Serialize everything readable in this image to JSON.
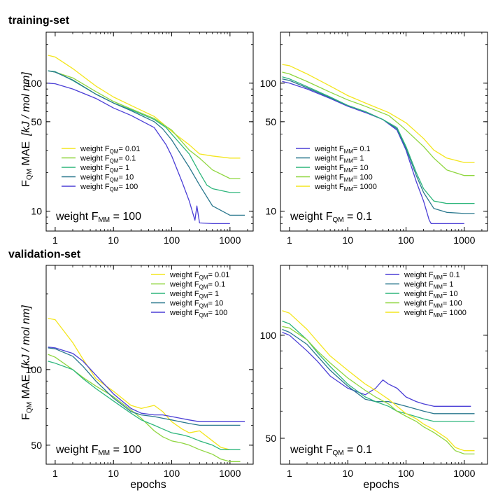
{
  "titles": {
    "training": "training-set",
    "validation": "validation-set"
  },
  "ylabel": {
    "main": "F",
    "sub": "QM",
    "tail": " MAE",
    "unit": "[kJ / mol nm]"
  },
  "xlabel": "epochs",
  "colors": {
    "yellow": "#f4e61e",
    "lightgreen": "#8fd63f",
    "green": "#2eb67c",
    "teal": "#2a788e",
    "purple": "#4b3fd6"
  },
  "chart_data": [
    {
      "type": "line",
      "id": "training-fmm100",
      "xscale": "log",
      "yscale": "log",
      "xlim": [
        0.7,
        2500
      ],
      "ylim": [
        7,
        250
      ],
      "xticks": [
        1,
        10,
        100,
        1000
      ],
      "xtick_labels": [
        "1",
        "10",
        "100",
        "1000"
      ],
      "yticks": [
        10,
        50,
        100
      ],
      "ytick_labels": [
        "10",
        "50",
        "100"
      ],
      "legend_position": "lower-left",
      "note": {
        "pre": "weight F",
        "sub": "MM",
        "post": " = 100"
      },
      "series": [
        {
          "name_pre": "weight F",
          "name_sub": "QM",
          "name_post": "= 0.01",
          "color": "#f4e61e",
          "x": [
            0.75,
            1,
            2,
            5,
            10,
            20,
            50,
            80,
            100,
            200,
            300,
            500,
            1000,
            1500
          ],
          "y": [
            165,
            160,
            130,
            95,
            78,
            67,
            55,
            46,
            42,
            33,
            28,
            27,
            26,
            26
          ]
        },
        {
          "name_pre": "weight F",
          "name_sub": "QM",
          "name_post": "= 0.1",
          "color": "#8fd63f",
          "x": [
            0.75,
            1,
            2,
            5,
            10,
            20,
            50,
            80,
            100,
            200,
            300,
            500,
            1000,
            1500
          ],
          "y": [
            125,
            122,
            110,
            86,
            72,
            63,
            53,
            46,
            43,
            30,
            26,
            21,
            18,
            18
          ]
        },
        {
          "name_pre": "weight F",
          "name_sub": "QM",
          "name_post": "= 1",
          "color": "#2eb67c",
          "x": [
            0.75,
            1,
            2,
            5,
            10,
            20,
            50,
            80,
            100,
            200,
            300,
            400,
            500,
            1000,
            1500
          ],
          "y": [
            125,
            123,
            105,
            82,
            70,
            62,
            52,
            45,
            40,
            28,
            20,
            16,
            15,
            14,
            14
          ]
        },
        {
          "name_pre": "weight F",
          "name_sub": "QM",
          "name_post": "= 10",
          "color": "#2a788e",
          "x": [
            0.75,
            1,
            2,
            5,
            10,
            20,
            50,
            70,
            100,
            200,
            300,
            500,
            1000,
            1800
          ],
          "y": [
            125,
            122,
            106,
            82,
            70,
            61,
            50,
            44,
            36,
            22,
            16,
            11,
            9.3,
            9.3
          ]
        },
        {
          "name_pre": "weight F",
          "name_sub": "QM",
          "name_post": "= 100",
          "color": "#4b3fd6",
          "x": [
            0.75,
            1,
            2,
            5,
            10,
            20,
            50,
            80,
            100,
            150,
            200,
            250,
            270,
            300,
            500,
            1000
          ],
          "y": [
            100,
            99,
            90,
            76,
            64,
            56,
            45,
            33,
            27,
            17,
            12,
            8.5,
            11,
            8.1,
            8.0,
            8.0
          ]
        }
      ]
    },
    {
      "type": "line",
      "id": "training-fqm01",
      "xscale": "log",
      "yscale": "log",
      "xlim": [
        0.7,
        2500
      ],
      "ylim": [
        7,
        250
      ],
      "xticks": [
        1,
        10,
        100,
        1000
      ],
      "xtick_labels": [
        "1",
        "10",
        "100",
        "1000"
      ],
      "yticks": [
        10,
        50,
        100
      ],
      "ytick_labels": [
        "10",
        "50",
        "100"
      ],
      "legend_position": "lower-left",
      "note": {
        "pre": "weight F",
        "sub": "QM",
        "post": " = 0.1"
      },
      "series": [
        {
          "name_pre": "weight F",
          "name_sub": "MM",
          "name_post": "= 0.1",
          "color": "#4b3fd6",
          "x": [
            0.75,
            1,
            2,
            5,
            10,
            20,
            40,
            70,
            100,
            150,
            200,
            250,
            270,
            500,
            1000
          ],
          "y": [
            103,
            100,
            90,
            76,
            66,
            59,
            52,
            43,
            30,
            17,
            12,
            8.5,
            8,
            8,
            8
          ]
        },
        {
          "name_pre": "weight F",
          "name_sub": "MM",
          "name_post": "= 1",
          "color": "#2a788e",
          "x": [
            0.75,
            1,
            2,
            5,
            10,
            20,
            40,
            70,
            100,
            150,
            200,
            300,
            500,
            1000,
            1500
          ],
          "y": [
            108,
            105,
            92,
            77,
            67,
            60,
            52,
            44,
            31,
            19,
            14,
            10.5,
            9.8,
            9.6,
            9.6
          ]
        },
        {
          "name_pre": "weight F",
          "name_sub": "MM",
          "name_post": "= 10",
          "color": "#2eb67c",
          "x": [
            0.75,
            1,
            2,
            5,
            10,
            20,
            40,
            70,
            100,
            150,
            200,
            300,
            500,
            1000,
            1500
          ],
          "y": [
            112,
            108,
            94,
            78,
            67,
            60,
            52,
            45,
            32,
            20,
            15,
            12,
            11.5,
            11.5,
            11.5
          ]
        },
        {
          "name_pre": "weight F",
          "name_sub": "MM",
          "name_post": "= 100",
          "color": "#8fd63f",
          "x": [
            0.75,
            1,
            2,
            5,
            10,
            20,
            50,
            80,
            100,
            200,
            300,
            500,
            1000,
            1500
          ],
          "y": [
            122,
            118,
            103,
            85,
            74,
            66,
            56,
            47,
            43,
            32,
            26,
            21,
            19,
            19
          ]
        },
        {
          "name_pre": "weight F",
          "name_sub": "MM",
          "name_post": "= 1000",
          "color": "#f4e61e",
          "x": [
            0.75,
            1,
            2,
            5,
            10,
            20,
            50,
            80,
            100,
            200,
            300,
            500,
            1000,
            1500
          ],
          "y": [
            140,
            137,
            118,
            95,
            80,
            70,
            59,
            52,
            49,
            37,
            30,
            26,
            24,
            24
          ]
        }
      ]
    },
    {
      "type": "line",
      "id": "validation-fmm100",
      "xscale": "log",
      "yscale": "log",
      "xlim": [
        0.7,
        2500
      ],
      "ylim": [
        42,
        260
      ],
      "xticks": [
        1,
        10,
        100,
        1000
      ],
      "xtick_labels": [
        "1",
        "10",
        "100",
        "1000"
      ],
      "yticks": [
        50,
        100
      ],
      "ytick_labels": [
        "50",
        "100"
      ],
      "legend_position": "top-right",
      "note": {
        "pre": "weight F",
        "sub": "MM",
        "post": " = 100"
      },
      "series": [
        {
          "name_pre": "weight F",
          "name_sub": "QM",
          "name_post": "= 0.01",
          "color": "#f4e61e",
          "x": [
            0.75,
            1,
            2,
            3,
            5,
            10,
            20,
            30,
            50,
            70,
            100,
            150,
            200,
            300,
            500,
            700,
            1000
          ],
          "y": [
            160,
            158,
            128,
            110,
            92,
            82,
            72,
            70,
            72,
            68,
            62,
            58,
            56,
            57,
            52,
            49,
            48
          ]
        },
        {
          "name_pre": "weight F",
          "name_sub": "QM",
          "name_post": "= 0.1",
          "color": "#8fd63f",
          "x": [
            0.75,
            1,
            2,
            3,
            5,
            10,
            20,
            30,
            50,
            70,
            100,
            150,
            200,
            300,
            500,
            700,
            1000,
            1500
          ],
          "y": [
            115,
            112,
            100,
            93,
            86,
            78,
            69,
            64,
            57,
            54,
            52,
            51,
            50,
            48,
            46,
            44,
            43,
            43
          ]
        },
        {
          "name_pre": "weight F",
          "name_sub": "QM",
          "name_post": "= 1",
          "color": "#2eb67c",
          "x": [
            0.75,
            1,
            2,
            3,
            5,
            10,
            20,
            30,
            50,
            70,
            100,
            150,
            200,
            300,
            500,
            700,
            1000,
            1500
          ],
          "y": [
            108,
            106,
            100,
            92,
            84,
            75,
            67,
            63,
            60,
            58,
            56,
            55,
            54,
            52,
            50,
            48,
            48,
            48
          ]
        },
        {
          "name_pre": "weight F",
          "name_sub": "QM",
          "name_post": "= 10",
          "color": "#2a788e",
          "x": [
            0.75,
            1,
            2,
            3,
            5,
            10,
            20,
            30,
            50,
            70,
            100,
            200,
            300,
            500,
            1000,
            1500
          ],
          "y": [
            122,
            121,
            113,
            103,
            90,
            77,
            68,
            66,
            65,
            64,
            63,
            61,
            60,
            60,
            60,
            60
          ]
        },
        {
          "name_pre": "weight F",
          "name_sub": "QM",
          "name_post": "= 100",
          "color": "#4b3fd6",
          "x": [
            0.75,
            1,
            2,
            3,
            5,
            10,
            20,
            30,
            50,
            70,
            100,
            200,
            300,
            500,
            1000,
            1800
          ],
          "y": [
            123,
            122,
            116,
            108,
            95,
            80,
            70,
            67,
            66,
            66,
            65,
            63,
            62,
            62,
            62,
            62
          ]
        }
      ]
    },
    {
      "type": "line",
      "id": "validation-fqm01",
      "xscale": "log",
      "yscale": "log",
      "xlim": [
        0.7,
        2500
      ],
      "ylim": [
        42,
        160
      ],
      "xticks": [
        1,
        10,
        100,
        1000
      ],
      "xtick_labels": [
        "1",
        "10",
        "100",
        "1000"
      ],
      "yticks": [
        50,
        100
      ],
      "ytick_labels": [
        "50",
        "100"
      ],
      "legend_position": "top-right",
      "note": {
        "pre": "weight F",
        "sub": "QM",
        "post": " = 0.1"
      },
      "series": [
        {
          "name_pre": "weight F",
          "name_sub": "MM",
          "name_post": "= 0.1",
          "color": "#4b3fd6",
          "x": [
            0.75,
            1,
            2,
            3,
            5,
            10,
            20,
            30,
            40,
            50,
            70,
            100,
            150,
            200,
            300,
            500,
            1000,
            1300
          ],
          "y": [
            102,
            100,
            90,
            84,
            76,
            70,
            67,
            70,
            74,
            72,
            70,
            66,
            64,
            63,
            62,
            62,
            62,
            62
          ]
        },
        {
          "name_pre": "weight F",
          "name_sub": "MM",
          "name_post": "= 1",
          "color": "#2a788e",
          "x": [
            0.75,
            1,
            2,
            3,
            5,
            10,
            20,
            30,
            50,
            70,
            100,
            200,
            300,
            500,
            1000,
            1500
          ],
          "y": [
            104,
            102,
            94,
            87,
            79,
            71,
            65,
            64,
            64,
            63,
            62,
            60,
            59,
            59,
            59,
            59
          ]
        },
        {
          "name_pre": "weight F",
          "name_sub": "MM",
          "name_post": "= 10",
          "color": "#2eb67c",
          "x": [
            0.75,
            1,
            2,
            3,
            5,
            10,
            20,
            30,
            50,
            70,
            100,
            200,
            300,
            500,
            1000,
            1500
          ],
          "y": [
            110,
            108,
            97,
            89,
            81,
            72,
            66,
            64,
            62,
            60,
            59,
            57,
            56,
            56,
            56,
            56
          ]
        },
        {
          "name_pre": "weight F",
          "name_sub": "MM",
          "name_post": "= 100",
          "color": "#8fd63f",
          "x": [
            0.75,
            1,
            2,
            3,
            5,
            10,
            20,
            30,
            50,
            70,
            100,
            150,
            200,
            300,
            500,
            700,
            1000,
            1500
          ],
          "y": [
            106,
            105,
            97,
            90,
            83,
            75,
            69,
            66,
            63,
            60,
            58,
            56,
            54,
            52,
            49,
            46,
            45,
            45
          ]
        },
        {
          "name_pre": "weight F",
          "name_sub": "MM",
          "name_post": "= 1000",
          "color": "#f4e61e",
          "x": [
            0.75,
            1,
            2,
            3,
            5,
            10,
            20,
            30,
            50,
            70,
            100,
            150,
            200,
            300,
            500,
            700,
            1000,
            1500
          ],
          "y": [
            118,
            116,
            104,
            96,
            87,
            79,
            72,
            69,
            65,
            62,
            59,
            57,
            55,
            53,
            50,
            47,
            46,
            46
          ]
        }
      ]
    }
  ]
}
